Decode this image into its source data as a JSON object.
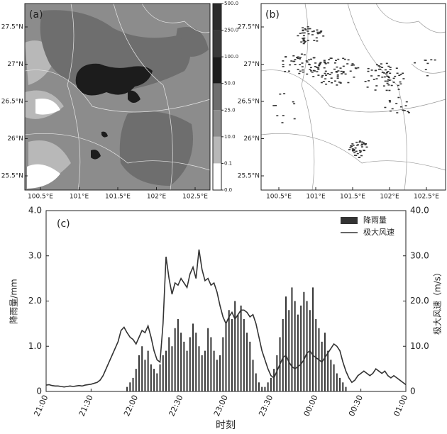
{
  "chart_data": [
    {
      "type": "map",
      "label": "(a)",
      "yticklabels": [
        "27.5°N",
        "27°N",
        "26.5°N",
        "26°N",
        "25.5°N"
      ],
      "xticklabels": [
        "100.5°E",
        "101°E",
        "101.5°E",
        "102°E",
        "102.5°E"
      ],
      "colorbar": {
        "ticks": [
          {
            "value": 500,
            "label": "500.0"
          },
          {
            "value": 250,
            "label": "250.0"
          },
          {
            "value": 100,
            "label": "100.0"
          },
          {
            "value": 50,
            "label": "50.0"
          },
          {
            "value": 25,
            "label": "25.0"
          },
          {
            "value": 10,
            "label": "10.0"
          },
          0.1,
          {
            "value": 0,
            "label": "0.0"
          }
        ],
        "colors": [
          "#2b2b2b",
          "#3a3a3a",
          "#1c1c1c",
          "#6e6e6e",
          "#8c8c8c",
          "#b8b8b8",
          "#ffffff"
        ]
      }
    },
    {
      "type": "map",
      "label": "(b)",
      "yticklabels": [
        "27.5°N",
        "27°N",
        "26.5°N",
        "26°N",
        "25.5°N"
      ],
      "xticklabels": [
        "100.5°E",
        "101°E",
        "101.5°E",
        "102°E",
        "102.5°E"
      ]
    },
    {
      "type": "bar",
      "label": "(c)",
      "xlabel": "时刻",
      "ylabel": "降雨量/mm",
      "y2label": "极大风速（m/s）",
      "x": [
        0,
        2,
        4,
        6,
        8,
        10,
        12,
        14,
        16,
        18,
        20,
        22,
        24,
        26,
        28,
        30,
        32,
        34,
        36,
        38,
        40,
        42,
        44,
        46,
        48,
        50,
        52,
        54,
        56,
        58,
        60,
        62,
        64,
        66,
        68,
        70,
        72,
        74,
        76,
        78,
        80,
        82,
        84,
        86,
        88,
        90,
        92,
        94,
        96,
        98,
        100,
        102,
        104,
        106,
        108,
        110,
        112,
        114,
        116,
        118,
        120,
        122,
        124,
        126,
        128,
        130,
        132,
        134,
        136,
        138,
        140,
        142,
        144,
        146,
        148,
        150,
        152,
        154,
        156,
        158,
        160,
        162,
        164,
        166,
        168,
        170,
        172,
        174,
        176,
        178,
        180,
        182,
        184,
        186,
        188,
        190,
        192,
        194,
        196,
        198,
        200,
        202,
        204,
        206,
        208,
        210,
        212,
        214,
        216,
        218,
        220,
        222,
        224,
        226,
        228,
        230,
        232,
        234,
        236,
        238,
        240
      ],
      "series": [
        {
          "name": "降雨量",
          "color": "#333333",
          "type": "bar",
          "values": [
            0,
            0,
            0,
            0,
            0,
            0,
            0,
            0,
            0,
            0,
            0,
            0,
            0,
            0,
            0,
            0,
            0,
            0,
            0,
            0,
            0,
            0,
            0,
            0,
            0,
            0,
            0,
            0.1,
            0.2,
            0.3,
            0.5,
            0.8,
            1.0,
            0.7,
            0.9,
            0.6,
            0.5,
            0.4,
            0.6,
            0.8,
            0.9,
            1.2,
            1.0,
            1.4,
            1.6,
            1.3,
            1.1,
            0.9,
            1.2,
            1.5,
            1.3,
            1.0,
            0.8,
            0.9,
            1.4,
            1.2,
            0.9,
            0.7,
            0.8,
            1.2,
            1.5,
            1.8,
            1.6,
            2.0,
            1.7,
            1.9,
            1.6,
            1.3,
            1.1,
            0.7,
            0.4,
            0.2,
            0.1,
            0.1,
            0.2,
            0.3,
            0.5,
            0.8,
            1.2,
            1.6,
            2.1,
            1.8,
            2.3,
            2.0,
            1.7,
            1.9,
            2.2,
            2.0,
            1.8,
            2.3,
            1.6,
            1.4,
            1.1,
            1.3,
            0.9,
            0.7,
            0.6,
            0.4,
            0.3,
            0.2,
            0.1,
            0,
            0,
            0,
            0,
            0,
            0,
            0,
            0,
            0,
            0,
            0,
            0,
            0,
            0,
            0,
            0,
            0,
            0,
            0,
            0
          ]
        },
        {
          "name": "极大风速",
          "color": "#333333",
          "type": "line",
          "axis": "y2",
          "values": [
            1.4,
            1.5,
            1.3,
            1.2,
            1.2,
            1.1,
            1.0,
            1.1,
            1.2,
            1.1,
            1.2,
            1.3,
            1.2,
            1.4,
            1.5,
            1.6,
            1.8,
            2.0,
            2.5,
            3.5,
            5.0,
            6.5,
            8.0,
            9.5,
            11.0,
            13.5,
            14.2,
            13.0,
            12.0,
            11.5,
            10.5,
            12.0,
            13.5,
            13.0,
            14.5,
            12.0,
            9.0,
            7.0,
            6.5,
            15.0,
            29.8,
            25.0,
            21.5,
            24.0,
            23.5,
            25.0,
            24.0,
            23.0,
            26.0,
            27.5,
            25.0,
            31.4,
            27.0,
            24.5,
            25.0,
            23.5,
            24.0,
            22.0,
            19.0,
            16.5,
            15.0,
            16.5,
            17.5,
            16.0,
            17.0,
            18.0,
            18.0,
            17.5,
            16.5,
            17.0,
            15.0,
            12.0,
            9.0,
            7.0,
            5.0,
            3.5,
            3.0,
            4.5,
            6.0,
            7.5,
            8.0,
            6.5,
            5.5,
            5.0,
            5.5,
            6.0,
            7.0,
            8.5,
            9.0,
            8.0,
            7.5,
            7.0,
            6.5,
            7.5,
            8.5,
            9.5,
            10.5,
            10.0,
            9.0,
            6.5,
            4.5,
            3.0,
            2.0,
            2.5,
            3.5,
            4.0,
            4.5,
            4.0,
            3.5,
            4.0,
            5.0,
            4.5,
            4.0,
            4.5,
            3.5,
            3.0,
            3.5,
            3.0,
            2.5,
            2.0,
            1.5
          ]
        }
      ],
      "xlim": [
        0,
        240
      ],
      "xticks": [
        {
          "value": 0,
          "label": "21:00"
        },
        {
          "value": 30,
          "label": "21:30"
        },
        {
          "value": 60,
          "label": "22:00"
        },
        {
          "value": 90,
          "label": "22:30"
        },
        {
          "value": 120,
          "label": "23:00"
        },
        {
          "value": 150,
          "label": "23:30"
        },
        {
          "value": 180,
          "label": "00:00"
        },
        {
          "value": 210,
          "label": "00:30"
        },
        {
          "value": 240,
          "label": "01:00"
        }
      ],
      "ylim": [
        0,
        4
      ],
      "yticks": [
        0,
        {
          "value": 1,
          "label": "1.0"
        },
        {
          "value": 2,
          "label": "2.0"
        },
        {
          "value": 3,
          "label": "3.0"
        },
        {
          "value": 4,
          "label": "4.0"
        }
      ],
      "y2lim": [
        0,
        40
      ],
      "y2ticks": [
        0,
        {
          "value": 10,
          "label": "10.0"
        },
        {
          "value": 20,
          "label": "20.0"
        },
        {
          "value": 30,
          "label": "30.0"
        },
        {
          "value": 40,
          "label": "40.0"
        }
      ],
      "legend": "upper right"
    }
  ]
}
